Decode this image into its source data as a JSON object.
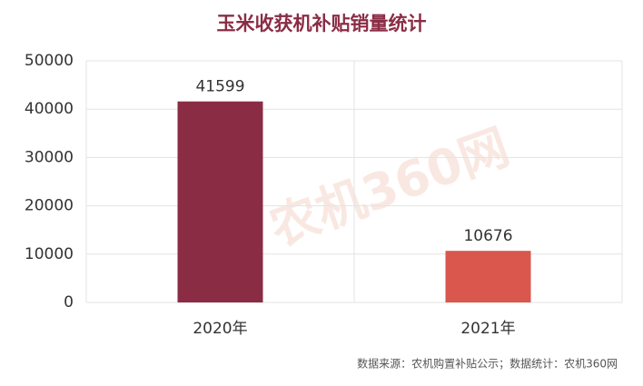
{
  "chart_data": {
    "type": "bar",
    "title": "玉米收获机补贴销量统计",
    "categories": [
      "2020年",
      "2021年"
    ],
    "values": [
      41599,
      10676
    ],
    "colors": [
      "#8b2c45",
      "#d9574d"
    ],
    "ylim": [
      0,
      50000
    ],
    "yticks": [
      0,
      10000,
      20000,
      30000,
      40000,
      50000
    ],
    "grid": true,
    "source": "数据来源：农机购置补贴公示；数据统计：农机360网",
    "watermark": "农机360网"
  }
}
